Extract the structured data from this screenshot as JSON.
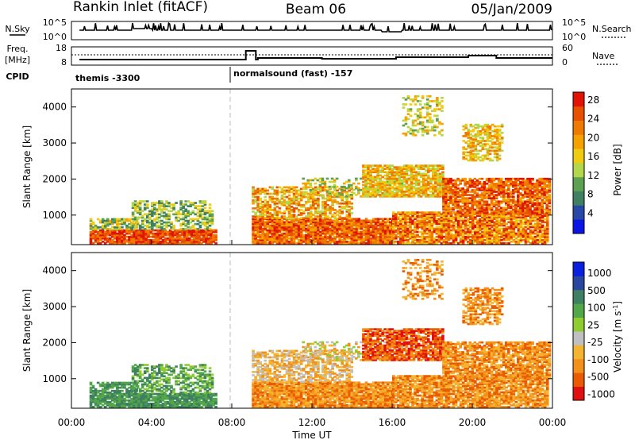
{
  "header": {
    "station": "Rankin Inlet (fitACF)",
    "beam": "Beam 06",
    "date": "05/Jan/2009"
  },
  "strip_panels": {
    "nsky_label": "N.Sky",
    "nsky_ticks": [
      "10^5",
      "10^0"
    ],
    "nsearch_label": "N.Search",
    "nsearch_ticks": [
      "10^5",
      "10^0"
    ],
    "freq_label": "Freq.",
    "freq_unit": "[MHz]",
    "freq_ticks": [
      "18",
      "8"
    ],
    "nave_label": "Nave",
    "nave_ticks": [
      "60",
      "0"
    ],
    "cpid_label": "CPID",
    "cpid_segments": [
      "themis -3300",
      "normalsound (fast) -157"
    ]
  },
  "colors": {
    "power_scale": [
      "#0a14e6",
      "#2848a8",
      "#3f7f62",
      "#5ca051",
      "#b3d64a",
      "#f0cc10",
      "#f5a200",
      "#f07a00",
      "#e85000",
      "#e01400"
    ],
    "velocity_scale": [
      "#e01010",
      "#ea5a00",
      "#f3901a",
      "#f5b430",
      "#c0c0c0",
      "#90cc30",
      "#52a848",
      "#3f7f62",
      "#2a46a0",
      "#0a20e0"
    ]
  },
  "chart_data": [
    {
      "type": "heatmap",
      "title": "Power",
      "xlabel": "Time UT",
      "ylabel": "Slant Range [km]",
      "x_ticks": [
        "00:00",
        "04:00",
        "08:00",
        "12:00",
        "16:00",
        "20:00",
        "00:00"
      ],
      "y_ticks": [
        "1000",
        "2000",
        "3000",
        "4000"
      ],
      "xlim": [
        "00:00",
        "24:00"
      ],
      "ylim": [
        180,
        4500
      ],
      "colorbar": {
        "label": "Power [dB]",
        "ticks": [
          "4",
          "8",
          "12",
          "16",
          "20",
          "24",
          "28"
        ],
        "range": [
          0,
          30
        ]
      }
    },
    {
      "type": "heatmap",
      "title": "Velocity",
      "xlabel": "Time UT",
      "ylabel": "Slant Range [km]",
      "x_ticks": [
        "00:00",
        "04:00",
        "08:00",
        "12:00",
        "16:00",
        "20:00",
        "00:00"
      ],
      "y_ticks": [
        "1000",
        "2000",
        "3000",
        "4000"
      ],
      "xlim": [
        "00:00",
        "24:00"
      ],
      "ylim": [
        180,
        4500
      ],
      "colorbar": {
        "label": "Velocity [m s",
        "label_exp": "-1",
        "label_close": "]",
        "ticks": [
          "1000",
          "500",
          "100",
          "25",
          "-25",
          "-100",
          "-500",
          "-1000"
        ]
      }
    }
  ],
  "axes": {
    "xlabel": "Time UT",
    "x_ticks": [
      "00:00",
      "04:00",
      "08:00",
      "12:00",
      "16:00",
      "20:00",
      "00:00"
    ]
  }
}
